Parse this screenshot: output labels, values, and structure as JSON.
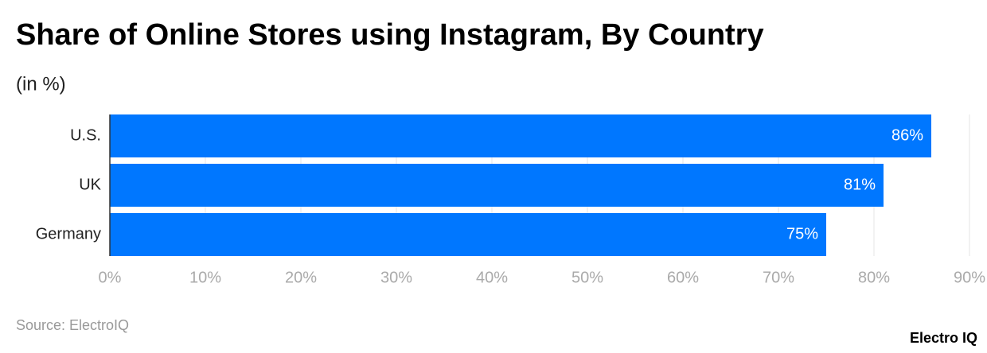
{
  "chart_data": {
    "type": "bar",
    "orientation": "horizontal",
    "title": "Share of Online Stores using Instagram, By Country",
    "subtitle": "(in %)",
    "categories": [
      "U.S.",
      "UK",
      "Germany"
    ],
    "values": [
      86,
      81,
      75
    ],
    "value_labels": [
      "86%",
      "81%",
      "75%"
    ],
    "color": "#0077ff",
    "xlim": [
      0,
      90
    ],
    "xticks": [
      {
        "value": 0,
        "label": "0%"
      },
      {
        "value": 10,
        "label": "10%"
      },
      {
        "value": 20,
        "label": "20%"
      },
      {
        "value": 30,
        "label": "30%"
      },
      {
        "value": 40,
        "label": "40%"
      },
      {
        "value": 50,
        "label": "50%"
      },
      {
        "value": 60,
        "label": "60%"
      },
      {
        "value": 70,
        "label": "70%"
      },
      {
        "value": 80,
        "label": "80%"
      },
      {
        "value": 90,
        "label": "90%"
      }
    ],
    "grid": true,
    "source": "Source: ElectroIQ",
    "brand": "Electro IQ"
  }
}
